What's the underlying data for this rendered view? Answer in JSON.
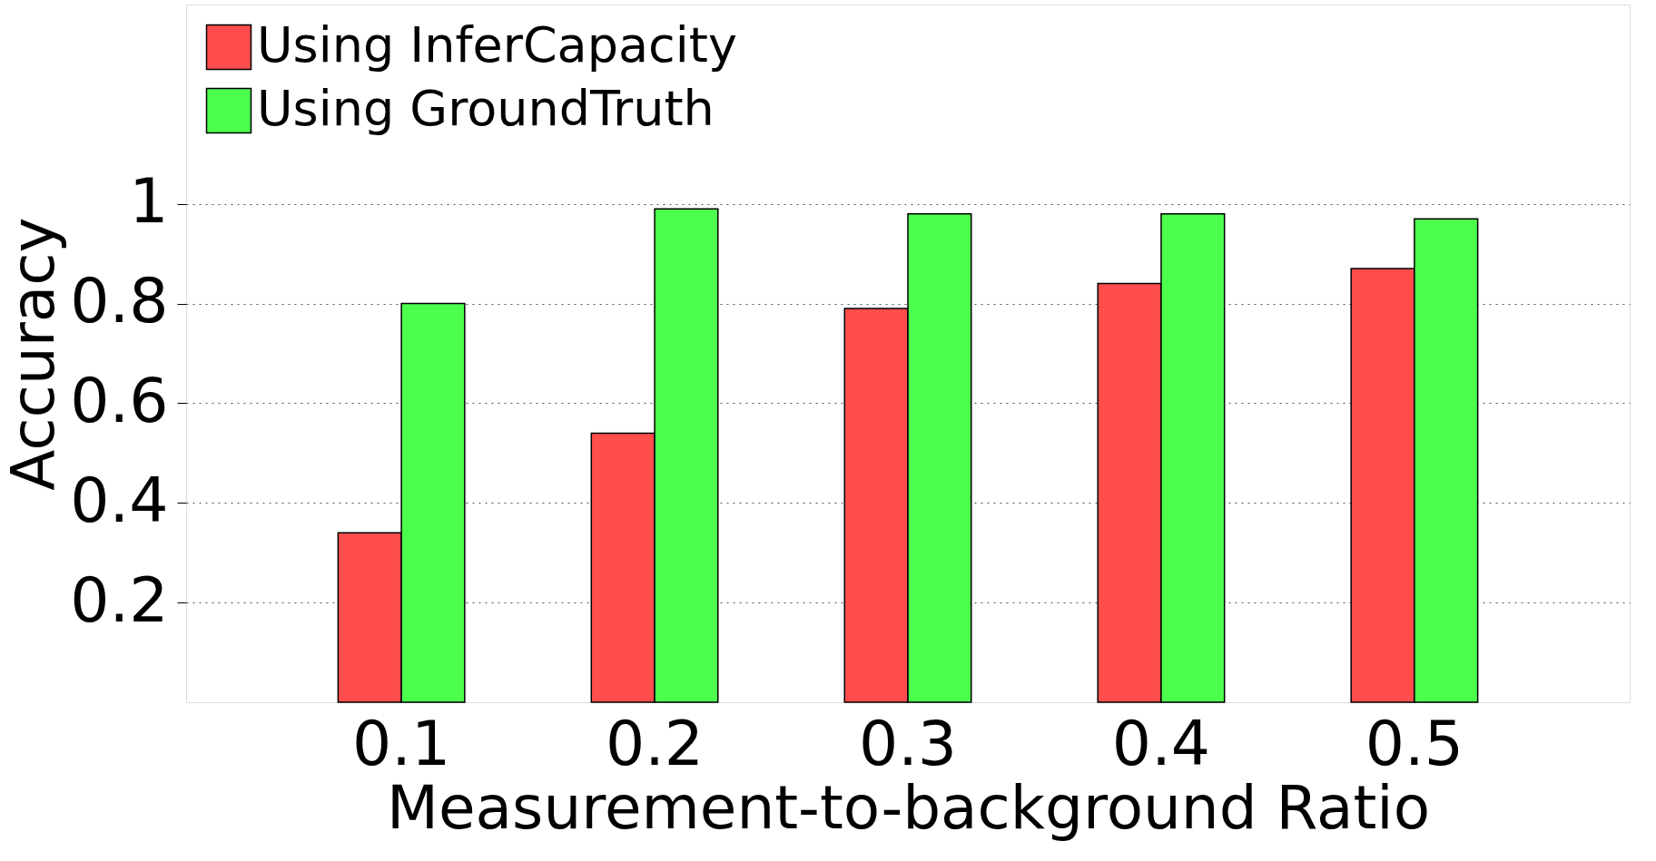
{
  "chart_data": {
    "type": "bar",
    "xlabel": "Measurement-to-background Ratio",
    "ylabel": "Accuracy",
    "categories": [
      "0.1",
      "0.2",
      "0.3",
      "0.4",
      "0.5"
    ],
    "series": [
      {
        "name": "Using InferCapacity",
        "color": "#ff4d4d",
        "values": [
          0.34,
          0.54,
          0.79,
          0.84,
          0.87
        ]
      },
      {
        "name": "Using GroundTruth",
        "color": "#4dff4d",
        "values": [
          0.8,
          0.99,
          0.98,
          0.98,
          0.97
        ]
      }
    ],
    "ylim": [
      0,
      1.4
    ],
    "yticks": [
      0.2,
      0.4,
      0.6,
      0.8,
      1
    ],
    "grid": "y",
    "legend": "top left"
  }
}
